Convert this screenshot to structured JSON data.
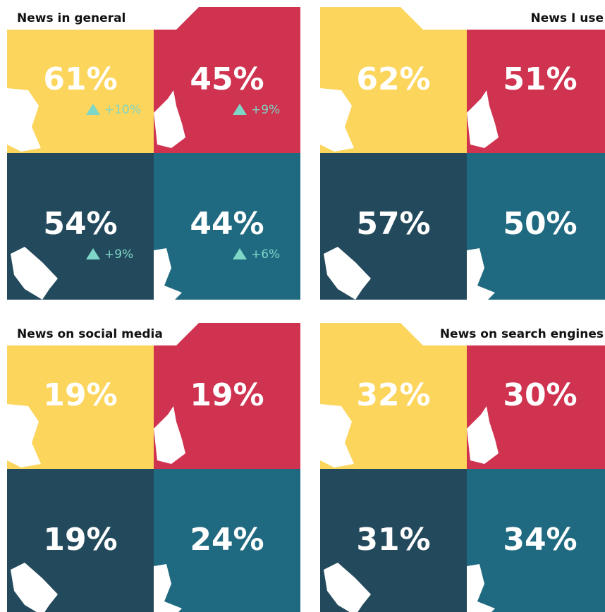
{
  "panels": [
    {
      "title": "News in general",
      "cells": [
        {
          "value": "61%",
          "change": "+10%"
        },
        {
          "value": "45%",
          "change": "+9%"
        },
        {
          "value": "54%",
          "change": "+9%"
        },
        {
          "value": "44%",
          "change": "+6%"
        }
      ]
    },
    {
      "title": "News I use",
      "cells": [
        {
          "value": "62%"
        },
        {
          "value": "51%"
        },
        {
          "value": "57%"
        },
        {
          "value": "50%"
        }
      ]
    },
    {
      "title": "News on social media",
      "cells": [
        {
          "value": "19%"
        },
        {
          "value": "19%"
        },
        {
          "value": "19%"
        },
        {
          "value": "24%"
        }
      ]
    },
    {
      "title": "News on search engines",
      "cells": [
        {
          "value": "32%"
        },
        {
          "value": "30%"
        },
        {
          "value": "31%"
        },
        {
          "value": "34%"
        }
      ]
    }
  ]
}
